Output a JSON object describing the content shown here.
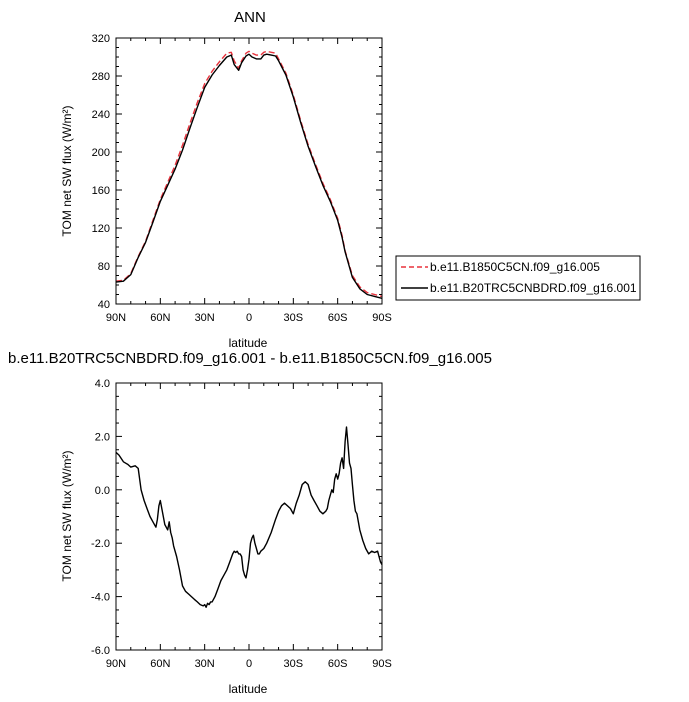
{
  "chart_data": [
    {
      "type": "line",
      "title": "ANN",
      "xlabel": "latitude",
      "ylabel": "TOM net SW flux (W/m²)",
      "xlim": [
        90,
        -90
      ],
      "ylim": [
        40,
        320
      ],
      "xticks": [
        90,
        60,
        30,
        0,
        -30,
        -60,
        -90
      ],
      "xtick_labels": [
        "90N",
        "60N",
        "30N",
        "0",
        "30S",
        "60S",
        "90S"
      ],
      "yticks": [
        40,
        80,
        120,
        160,
        200,
        240,
        280,
        320
      ],
      "ytick_labels": [
        "40",
        "80",
        "120",
        "160",
        "200",
        "240",
        "280",
        "320"
      ],
      "legend_position": "right",
      "series": [
        {
          "name": "b.e11.B1850C5CN.f09_g16.005",
          "color": "#e8323c",
          "dash": "dashed",
          "x": [
            90,
            85,
            80,
            75,
            70,
            65,
            60,
            55,
            50,
            45,
            40,
            35,
            30,
            25,
            20,
            15,
            12,
            10,
            7,
            5,
            2,
            0,
            -2,
            -5,
            -8,
            -10,
            -12,
            -15,
            -18,
            -20,
            -25,
            -30,
            -35,
            -40,
            -45,
            -50,
            -55,
            -60,
            -63,
            -65,
            -70,
            -75,
            -80,
            -85,
            -90
          ],
          "y": [
            64,
            65,
            72,
            90,
            106,
            128,
            150,
            168,
            186,
            207,
            230,
            252,
            272,
            285,
            295,
            304,
            305,
            296,
            288,
            296,
            304,
            306,
            304,
            302,
            302,
            305,
            306,
            305,
            304,
            298,
            283,
            260,
            233,
            208,
            187,
            167,
            150,
            130,
            112,
            96,
            70,
            58,
            52,
            50,
            48
          ]
        },
        {
          "name": "b.e11.B20TRC5CNBDRD.f09_g16.001",
          "color": "#000000",
          "dash": "solid",
          "x": [
            90,
            85,
            80,
            75,
            70,
            65,
            60,
            55,
            50,
            45,
            40,
            35,
            30,
            25,
            20,
            15,
            12,
            10,
            7,
            5,
            2,
            0,
            -2,
            -5,
            -8,
            -10,
            -12,
            -15,
            -18,
            -20,
            -25,
            -30,
            -35,
            -40,
            -45,
            -50,
            -55,
            -60,
            -63,
            -65,
            -70,
            -75,
            -80,
            -85,
            -90
          ],
          "y": [
            63,
            64,
            71,
            89,
            105,
            126,
            148,
            165,
            182,
            202,
            225,
            247,
            268,
            281,
            291,
            300,
            302,
            292,
            286,
            294,
            301,
            303,
            300,
            298,
            298,
            302,
            303,
            302,
            301,
            296,
            281,
            258,
            231,
            206,
            185,
            165,
            148,
            128,
            110,
            95,
            68,
            56,
            50,
            48,
            46
          ]
        }
      ]
    },
    {
      "type": "line",
      "title": "b.e11.B20TRC5CNBDRD.f09_g16.001 - b.e11.B1850C5CN.f09_g16.005",
      "xlabel": "latitude",
      "ylabel": "TOM net SW flux (W/m²)",
      "xlim": [
        90,
        -90
      ],
      "ylim": [
        -6,
        4
      ],
      "xticks": [
        90,
        60,
        30,
        0,
        -30,
        -60,
        -90
      ],
      "xtick_labels": [
        "90N",
        "60N",
        "30N",
        "0",
        "30S",
        "60S",
        "90S"
      ],
      "yticks": [
        -6,
        -4,
        -2,
        0,
        2,
        4
      ],
      "ytick_labels": [
        "-6.0",
        "-4.0",
        "-2.0",
        "0.0",
        "2.0",
        "4.0"
      ],
      "series": [
        {
          "color": "#000000",
          "x": [
            90,
            88,
            85,
            82,
            80,
            77,
            75,
            73,
            71,
            69,
            67,
            65,
            63,
            62,
            61,
            60,
            59,
            57,
            55,
            54,
            53,
            52,
            51,
            49,
            47,
            45,
            43,
            41,
            39,
            37,
            35,
            33,
            31,
            30,
            29,
            28,
            27,
            26,
            25,
            23,
            21,
            19,
            17,
            15,
            13,
            11,
            10,
            9,
            8,
            7,
            6,
            5,
            4,
            3,
            2,
            1,
            0,
            -1,
            -2,
            -3,
            -4,
            -5,
            -6,
            -7,
            -8,
            -10,
            -12,
            -15,
            -18,
            -20,
            -22,
            -24,
            -26,
            -28,
            -30,
            -32,
            -34,
            -36,
            -38,
            -40,
            -42,
            -44,
            -46,
            -48,
            -50,
            -52,
            -53,
            -54,
            -55,
            -56,
            -57,
            -58,
            -59,
            -60,
            -61,
            -62,
            -63,
            -64,
            -65,
            -66,
            -67,
            -68,
            -69,
            -70,
            -71,
            -72,
            -73,
            -75,
            -77,
            -79,
            -81,
            -83,
            -85,
            -87,
            -88,
            -89,
            -90
          ],
          "y": [
            1.4,
            1.3,
            1.05,
            0.95,
            0.85,
            0.9,
            0.8,
            0.0,
            -0.4,
            -0.7,
            -1.0,
            -1.2,
            -1.4,
            -1.1,
            -0.6,
            -0.4,
            -0.7,
            -1.3,
            -1.5,
            -1.2,
            -1.6,
            -1.8,
            -2.1,
            -2.5,
            -3.0,
            -3.6,
            -3.8,
            -3.9,
            -4.0,
            -4.1,
            -4.2,
            -4.3,
            -4.35,
            -4.3,
            -4.4,
            -4.25,
            -4.3,
            -4.2,
            -4.2,
            -4.0,
            -3.7,
            -3.4,
            -3.2,
            -3.0,
            -2.7,
            -2.4,
            -2.3,
            -2.35,
            -2.3,
            -2.4,
            -2.4,
            -2.5,
            -3.0,
            -3.2,
            -3.3,
            -3.0,
            -2.6,
            -2.0,
            -1.8,
            -1.7,
            -2.0,
            -2.2,
            -2.4,
            -2.4,
            -2.3,
            -2.2,
            -2.0,
            -1.6,
            -1.1,
            -0.8,
            -0.6,
            -0.5,
            -0.6,
            -0.7,
            -0.9,
            -0.5,
            -0.2,
            0.2,
            0.3,
            0.2,
            -0.2,
            -0.4,
            -0.6,
            -0.8,
            -0.9,
            -0.8,
            -0.7,
            -0.4,
            -0.2,
            0.0,
            -0.1,
            0.4,
            0.6,
            0.4,
            0.6,
            1.0,
            1.2,
            0.8,
            1.8,
            2.35,
            1.7,
            1.0,
            0.8,
            0.2,
            -0.4,
            -0.8,
            -0.9,
            -1.5,
            -1.9,
            -2.2,
            -2.4,
            -2.3,
            -2.35,
            -2.3,
            -2.5,
            -2.7,
            -2.8
          ]
        }
      ]
    }
  ]
}
